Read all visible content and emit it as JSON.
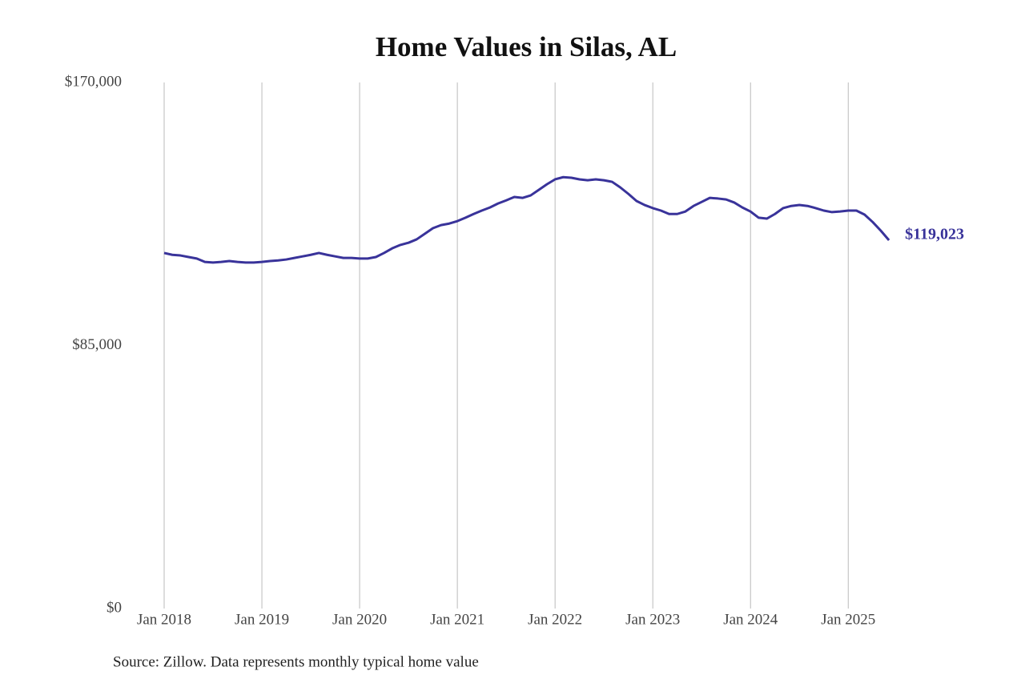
{
  "chart_data": {
    "type": "line",
    "title": "Home Values in Silas, AL",
    "source": "Source: Zillow. Data represents monthly typical home value",
    "color": "#39339a",
    "grid": "x",
    "x": [
      "2018-01",
      "2018-02",
      "2018-03",
      "2018-04",
      "2018-05",
      "2018-06",
      "2018-07",
      "2018-08",
      "2018-09",
      "2018-10",
      "2018-11",
      "2018-12",
      "2019-01",
      "2019-02",
      "2019-03",
      "2019-04",
      "2019-05",
      "2019-06",
      "2019-07",
      "2019-08",
      "2019-09",
      "2019-10",
      "2019-11",
      "2019-12",
      "2020-01",
      "2020-02",
      "2020-03",
      "2020-04",
      "2020-05",
      "2020-06",
      "2020-07",
      "2020-08",
      "2020-09",
      "2020-10",
      "2020-11",
      "2020-12",
      "2021-01",
      "2021-02",
      "2021-03",
      "2021-04",
      "2021-05",
      "2021-06",
      "2021-07",
      "2021-08",
      "2021-09",
      "2021-10",
      "2021-11",
      "2021-12",
      "2022-01",
      "2022-02",
      "2022-03",
      "2022-04",
      "2022-05",
      "2022-06",
      "2022-07",
      "2022-08",
      "2022-09",
      "2022-10",
      "2022-11",
      "2022-12",
      "2023-01",
      "2023-02",
      "2023-03",
      "2023-04",
      "2023-05",
      "2023-06",
      "2023-07",
      "2023-08",
      "2023-09",
      "2023-10",
      "2023-11",
      "2023-12",
      "2024-01",
      "2024-02",
      "2024-03",
      "2024-04",
      "2024-05",
      "2024-06",
      "2024-07",
      "2024-08",
      "2024-09",
      "2024-10",
      "2024-11",
      "2024-12",
      "2025-01",
      "2025-02",
      "2025-03",
      "2025-04",
      "2025-05",
      "2025-06"
    ],
    "values": [
      114900,
      114300,
      114100,
      113600,
      113100,
      112000,
      111800,
      112000,
      112300,
      112000,
      111800,
      111800,
      112000,
      112300,
      112500,
      112800,
      113300,
      113800,
      114300,
      114900,
      114300,
      113800,
      113300,
      113300,
      113100,
      113100,
      113600,
      114900,
      116400,
      117500,
      118200,
      119300,
      121100,
      122900,
      123900,
      124400,
      125200,
      126300,
      127500,
      128600,
      129600,
      130900,
      131900,
      133000,
      132700,
      133500,
      135300,
      137100,
      138700,
      139400,
      139200,
      138700,
      138400,
      138700,
      138400,
      137900,
      136100,
      134000,
      131700,
      130400,
      129400,
      128600,
      127500,
      127500,
      128300,
      130100,
      131400,
      132700,
      132500,
      132200,
      131200,
      129600,
      128300,
      126300,
      126000,
      127500,
      129400,
      130100,
      130400,
      130100,
      129400,
      128600,
      128100,
      128300,
      128600,
      128600,
      127300,
      124900,
      122100,
      119023
    ],
    "value_labels": [
      null,
      null,
      null,
      null,
      null,
      null,
      null,
      null,
      null,
      null,
      null,
      null,
      null,
      null,
      null,
      null,
      null,
      null,
      null,
      null,
      null,
      null,
      null,
      null,
      null,
      null,
      null,
      null,
      null,
      null,
      null,
      null,
      null,
      null,
      null,
      null,
      null,
      null,
      null,
      null,
      null,
      null,
      null,
      null,
      null,
      null,
      null,
      null,
      null,
      null,
      null,
      null,
      null,
      null,
      null,
      null,
      null,
      null,
      null,
      null,
      null,
      null,
      null,
      null,
      null,
      null,
      null,
      null,
      null,
      null,
      null,
      null,
      null,
      null,
      null,
      null,
      null,
      null,
      null,
      null,
      null,
      null,
      null,
      null,
      null,
      null,
      null,
      null,
      null,
      "$119,023"
    ],
    "xticks": [
      {
        "value": "2018-01",
        "label": "Jan 2018"
      },
      {
        "value": "2019-01",
        "label": "Jan 2019"
      },
      {
        "value": "2020-01",
        "label": "Jan 2020"
      },
      {
        "value": "2021-01",
        "label": "Jan 2021"
      },
      {
        "value": "2022-01",
        "label": "Jan 2022"
      },
      {
        "value": "2023-01",
        "label": "Jan 2023"
      },
      {
        "value": "2024-01",
        "label": "Jan 2024"
      },
      {
        "value": "2025-01",
        "label": "Jan 2025"
      }
    ],
    "ylim": [
      0,
      170000
    ],
    "yticks": [
      {
        "value": 0,
        "label": "$0"
      },
      {
        "value": 85000,
        "label": "$85,000"
      },
      {
        "value": 170000,
        "label": "$170,000"
      }
    ]
  }
}
